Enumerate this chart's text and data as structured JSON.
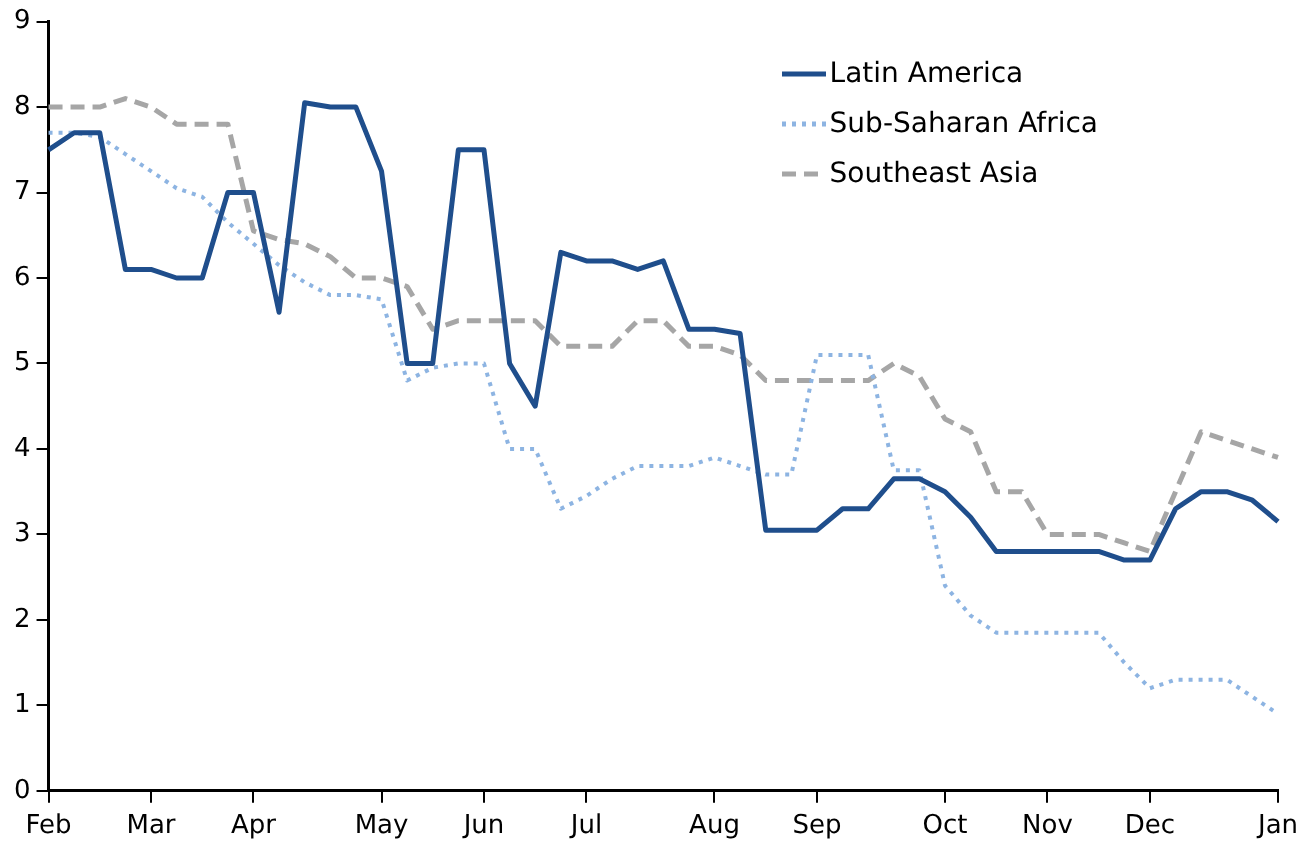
{
  "chart_data": {
    "type": "line",
    "grid": false,
    "legend": "top right",
    "marker": "none",
    "categories": [
      "Feb",
      null,
      null,
      null,
      "Mar",
      null,
      null,
      null,
      "Apr",
      null,
      null,
      null,
      null,
      "May",
      null,
      null,
      null,
      "Jun",
      null,
      null,
      null,
      "Jul",
      null,
      null,
      null,
      null,
      "Aug",
      null,
      null,
      null,
      "Sep",
      null,
      null,
      null,
      null,
      "Oct",
      null,
      null,
      null,
      "Nov",
      null,
      null,
      null,
      "Dec",
      null,
      null,
      null,
      null,
      "Jan"
    ],
    "ylim": [
      0,
      9
    ],
    "yticks": [
      0,
      1,
      2,
      3,
      4,
      5,
      6,
      7,
      8,
      9
    ],
    "series": [
      {
        "name": "Latin America",
        "color": "#1f4e8c",
        "line_style": "solid",
        "values": [
          7.5,
          7.7,
          7.7,
          6.1,
          6.1,
          6.0,
          6.0,
          7.0,
          7.0,
          5.6,
          8.05,
          8.0,
          8.0,
          7.25,
          5.0,
          5.0,
          7.5,
          7.5,
          5.0,
          4.5,
          6.3,
          6.2,
          6.2,
          6.1,
          6.2,
          5.4,
          5.4,
          5.35,
          3.05,
          3.05,
          3.05,
          3.3,
          3.3,
          3.65,
          3.65,
          3.5,
          3.2,
          2.8,
          2.8,
          2.8,
          2.8,
          2.8,
          2.7,
          2.7,
          3.3,
          3.5,
          3.5,
          3.4,
          3.15
        ]
      },
      {
        "name": "Sub-Saharan Africa",
        "color": "#8db4e2",
        "line_style": "dotted",
        "values": [
          7.7,
          7.7,
          7.65,
          7.45,
          7.25,
          7.05,
          6.95,
          6.65,
          6.4,
          6.15,
          5.95,
          5.8,
          5.8,
          5.75,
          4.8,
          4.95,
          5.0,
          5.0,
          4.0,
          4.0,
          3.3,
          3.45,
          3.65,
          3.8,
          3.8,
          3.8,
          3.9,
          3.8,
          3.7,
          3.7,
          5.1,
          5.1,
          5.1,
          3.75,
          3.75,
          2.4,
          2.05,
          1.85,
          1.85,
          1.85,
          1.85,
          1.85,
          1.5,
          1.2,
          1.3,
          1.3,
          1.3,
          1.1,
          0.9
        ]
      },
      {
        "name": "Southeast Asia",
        "color": "#a6a6a6",
        "line_style": "dashed",
        "values": [
          8.0,
          8.0,
          8.0,
          8.1,
          8.0,
          7.8,
          7.8,
          7.8,
          6.55,
          6.45,
          6.4,
          6.25,
          6.0,
          6.0,
          5.9,
          5.4,
          5.5,
          5.5,
          5.5,
          5.5,
          5.2,
          5.2,
          5.2,
          5.5,
          5.5,
          5.2,
          5.2,
          5.1,
          4.8,
          4.8,
          4.8,
          4.8,
          4.8,
          5.0,
          4.85,
          4.35,
          4.2,
          3.5,
          3.5,
          3.0,
          3.0,
          3.0,
          2.9,
          2.8,
          3.5,
          4.2,
          4.1,
          4.0,
          3.9
        ]
      }
    ]
  }
}
